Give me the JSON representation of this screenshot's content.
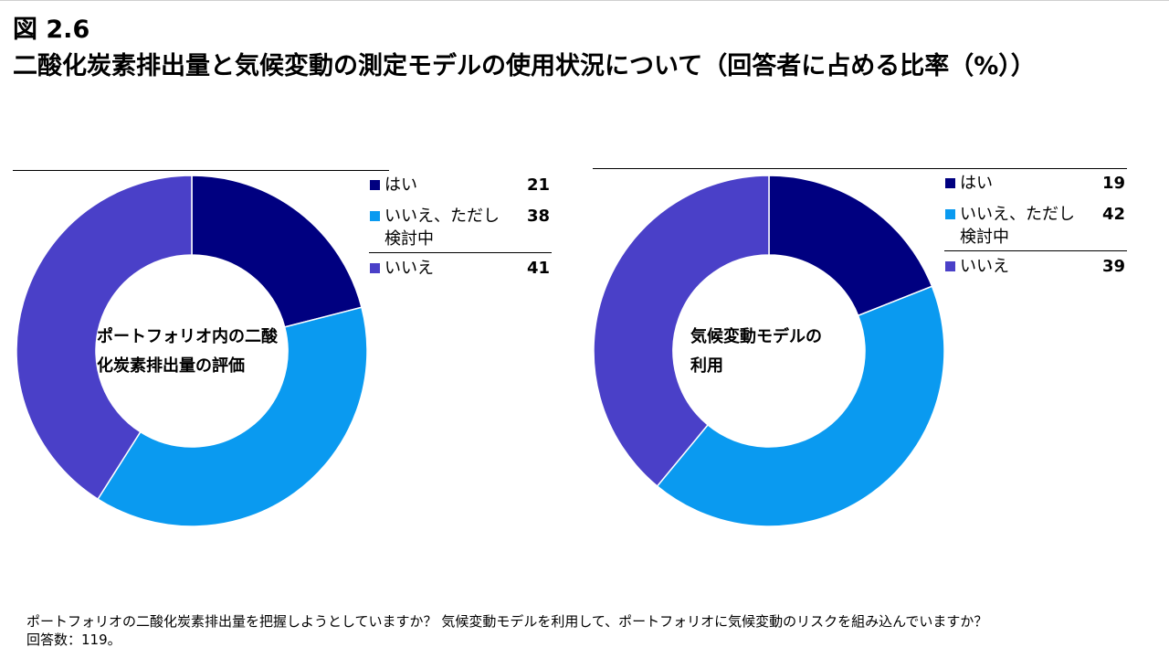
{
  "header": {
    "figure_label": "図 2.6",
    "title": "二酸化炭素排出量と気候変動の測定モデルの使用状況について（回答者に占める比率（%））"
  },
  "chart_data": [
    {
      "type": "pie",
      "donut": true,
      "center_label": "ポートフォリオ内の二酸化炭素排出量の評価",
      "center_lines": [
        "ポートフォリオ内の二酸",
        "化炭素排出量の評価"
      ],
      "categories": [
        "はい",
        "いいえ、ただし検討中",
        "いいえ"
      ],
      "category_lines": [
        [
          "はい"
        ],
        [
          "いいえ、ただし",
          "検討中"
        ],
        [
          "いいえ"
        ]
      ],
      "values": [
        21,
        38,
        41
      ],
      "colors": [
        "#000080",
        "#0a9af0",
        "#4a40c8"
      ],
      "legend_position": "top-right"
    },
    {
      "type": "pie",
      "donut": true,
      "center_label": "気候変動モデルの利用",
      "center_lines": [
        "気候変動モデルの",
        "利用"
      ],
      "categories": [
        "はい",
        "いいえ、ただし検討中",
        "いいえ"
      ],
      "category_lines": [
        [
          "はい"
        ],
        [
          "いいえ、ただし",
          "検討中"
        ],
        [
          "いいえ"
        ]
      ],
      "values": [
        19,
        42,
        39
      ],
      "colors": [
        "#000080",
        "#0a9af0",
        "#4a40c8"
      ],
      "legend_position": "top-right"
    }
  ],
  "footnote": {
    "lines": [
      "ポートフォリオの二酸化炭素排出量を把握しようとしていますか？ 気候変動モデルを利用して、ポートフォリオに気候変動のリスクを組み込んでいますか？",
      "回答数：119。"
    ]
  }
}
